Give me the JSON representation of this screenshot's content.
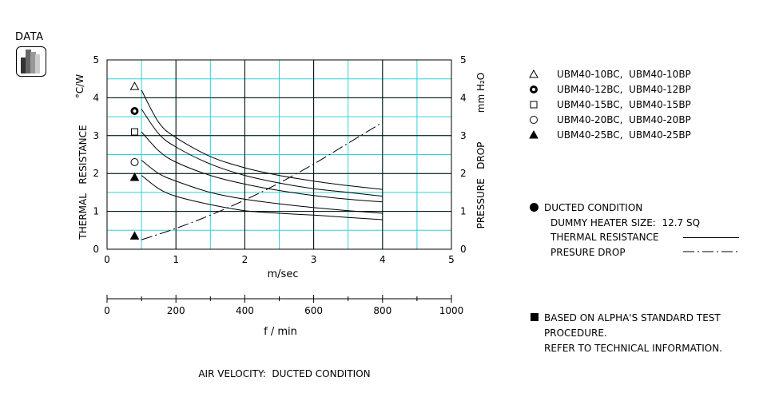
{
  "badge": {
    "label": "DATA",
    "icon": "bar-chart-icon"
  },
  "chart_data": {
    "type": "line",
    "xlabel": "m/sec",
    "xlim": [
      0,
      5
    ],
    "x_ticks": [
      "0",
      "1",
      "2",
      "3",
      "4",
      "5"
    ],
    "ylabel_left": "THERMAL   RESISTANCE",
    "ylabel_left_unit": "°C/W",
    "ylim_left": [
      0,
      5
    ],
    "y_ticks_left": [
      "0",
      "1",
      "2",
      "3",
      "4",
      "5"
    ],
    "ylabel_right": "PRESSURE   DROP",
    "ylabel_right_unit": "mm H₂O",
    "ylim_right": [
      0,
      5
    ],
    "y_ticks_right": [
      "0",
      "1",
      "2",
      "3",
      "4",
      "5"
    ],
    "secondary_xlabel": "f / min",
    "secondary_xlim": [
      0,
      1000
    ],
    "secondary_x_ticks": [
      "0",
      "200",
      "400",
      "600",
      "800",
      "1000"
    ],
    "grid": true,
    "caption": "AIR VELOCITY:  DUCTED CONDITION",
    "series": [
      {
        "name": "UBM40-10BC,  UBM40-10BP",
        "marker": "triangle-open",
        "marker_value": 4.3,
        "x": [
          0.5,
          0.75,
          1,
          1.5,
          2,
          2.5,
          3,
          3.5,
          4
        ],
        "y": [
          4.2,
          3.35,
          2.95,
          2.45,
          2.15,
          1.95,
          1.8,
          1.68,
          1.58
        ]
      },
      {
        "name": "UBM40-12BC,  UBM40-12BP",
        "marker": "bullseye",
        "marker_value": 3.65,
        "x": [
          0.5,
          0.75,
          1,
          1.5,
          2,
          2.5,
          3,
          3.5,
          4
        ],
        "y": [
          3.7,
          3.05,
          2.7,
          2.25,
          1.95,
          1.75,
          1.6,
          1.5,
          1.4
        ]
      },
      {
        "name": "UBM40-15BC,  UBM40-15BP",
        "marker": "square-open",
        "marker_value": 3.1,
        "x": [
          0.5,
          0.75,
          1,
          1.5,
          2,
          2.5,
          3,
          3.5,
          4
        ],
        "y": [
          3.1,
          2.6,
          2.3,
          1.95,
          1.72,
          1.55,
          1.42,
          1.32,
          1.25
        ]
      },
      {
        "name": "UBM40-20BC,  UBM40-20BP",
        "marker": "circle-open",
        "marker_value": 2.3,
        "x": [
          0.5,
          0.75,
          1,
          1.5,
          2,
          2.5,
          3,
          3.5,
          4
        ],
        "y": [
          2.35,
          2.0,
          1.8,
          1.5,
          1.32,
          1.2,
          1.1,
          1.02,
          0.95
        ]
      },
      {
        "name": "UBM40-25BC,  UBM40-25BP",
        "marker": "triangle-filled",
        "marker_value": 1.9,
        "x": [
          0.5,
          0.75,
          1,
          1.5,
          2,
          2.5,
          3,
          3.5,
          4
        ],
        "y": [
          1.95,
          1.6,
          1.4,
          1.18,
          1.02,
          0.95,
          0.9,
          0.84,
          0.78
        ]
      }
    ],
    "pressure_drop": {
      "marker": "triangle-filled",
      "marker_value": 0.35,
      "x": [
        0.5,
        1,
        1.5,
        2,
        2.5,
        3,
        3.5,
        4
      ],
      "y": [
        0.25,
        0.55,
        0.9,
        1.3,
        1.75,
        2.25,
        2.8,
        3.35
      ]
    }
  },
  "legend": {
    "items": [
      {
        "symbol": "triangle-open",
        "text": "UBM40-10BC,  UBM40-10BP"
      },
      {
        "symbol": "bullseye",
        "text": "UBM40-12BC,  UBM40-12BP"
      },
      {
        "symbol": "square-open",
        "text": "UBM40-15BC,  UBM40-15BP"
      },
      {
        "symbol": "circle-open",
        "text": "UBM40-20BC,  UBM40-20BP"
      },
      {
        "symbol": "triangle-filled",
        "text": "UBM40-25BC,  UBM40-25BP"
      }
    ]
  },
  "conditions": {
    "heading": "DUCTED CONDITION",
    "heater": "DUMMY HEATER SIZE:  12.7 SQ",
    "thermal_label": "THERMAL RESISTANCE",
    "pressure_label": "PRESURE DROP"
  },
  "note": {
    "line1": "BASED ON ALPHA'S STANDARD TEST",
    "line2": "PROCEDURE.",
    "line3": "REFER TO TECHNICAL INFORMATION."
  },
  "colors": {
    "grid": "#33d0d8",
    "ink": "#000000"
  }
}
